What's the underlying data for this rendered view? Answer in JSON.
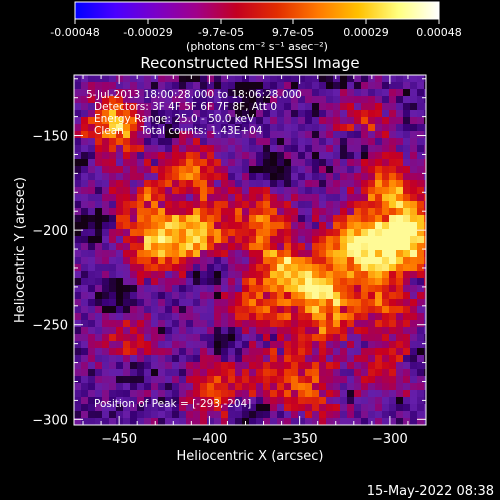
{
  "colorbar": {
    "tick_labels": [
      "-0.00048",
      "-0.00029",
      "-9.7e-05",
      "9.7e-05",
      "0.00029",
      "0.00048"
    ],
    "range": [
      -0.00048,
      0.00048
    ],
    "units_label": "(photons cm⁻² s⁻¹ asec⁻²)",
    "colors": [
      "#0000ff",
      "#4a00ff",
      "#7a00c8",
      "#a0008a",
      "#c30020",
      "#e22d00",
      "#ff7800",
      "#ffc000",
      "#ffff80",
      "#ffffff"
    ]
  },
  "chart_data": {
    "type": "heatmap",
    "title": "Reconstructed RHESSI Image",
    "xlabel": "Heliocentric X (arcsec)",
    "ylabel": "Heliocentric Y (arcsec)",
    "xlim": [
      -475,
      -280
    ],
    "ylim": [
      -303,
      -118
    ],
    "x_ticks": [
      -450,
      -400,
      -350,
      -300
    ],
    "y_ticks": [
      -150,
      -200,
      -250,
      -300
    ],
    "x_tick_labels": [
      "−450",
      "−400",
      "−350",
      "−300"
    ],
    "y_tick_labels": [
      "−150",
      "−200",
      "−250",
      "−300"
    ],
    "annotations": [
      "5-Jul-2013 18:00:28.000 to 18:06:28.000",
      "Detectors: 3F 4F 5F 6F 7F 8F, Att 0",
      "Energy Range: 25.0 - 50.0 keV",
      "Clean     Total counts: 1.43E+04"
    ],
    "peak_label": "Position of Peak = [-293,-204]",
    "peak": {
      "x": -293,
      "y": -204
    },
    "bright_sources": [
      {
        "x": -453,
        "y": -145,
        "level": 0.75
      },
      {
        "x": -410,
        "y": -170,
        "level": 0.55
      },
      {
        "x": -440,
        "y": -185,
        "level": 0.45
      },
      {
        "x": -430,
        "y": -210,
        "level": 0.6
      },
      {
        "x": -408,
        "y": -202,
        "level": 0.7
      },
      {
        "x": -372,
        "y": -195,
        "level": 0.55
      },
      {
        "x": -355,
        "y": -218,
        "level": 0.7
      },
      {
        "x": -338,
        "y": -240,
        "level": 0.9
      },
      {
        "x": -318,
        "y": -208,
        "level": 0.85
      },
      {
        "x": -300,
        "y": -180,
        "level": 0.6
      },
      {
        "x": -293,
        "y": -204,
        "level": 1.0
      },
      {
        "x": -300,
        "y": -235,
        "level": 0.55
      },
      {
        "x": -375,
        "y": -240,
        "level": 0.45
      },
      {
        "x": -395,
        "y": -285,
        "level": 0.45
      },
      {
        "x": -360,
        "y": -275,
        "level": 0.4
      },
      {
        "x": -338,
        "y": -285,
        "level": 0.4
      },
      {
        "x": -445,
        "y": -260,
        "level": 0.35
      },
      {
        "x": -300,
        "y": -270,
        "level": 0.35
      },
      {
        "x": -315,
        "y": -145,
        "level": 0.35
      }
    ]
  },
  "footer": {
    "timestamp": "15-May-2022 08:38"
  }
}
